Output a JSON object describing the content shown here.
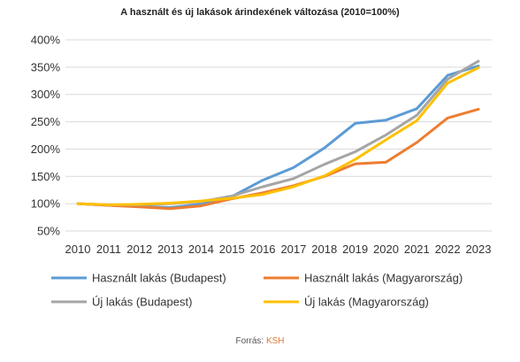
{
  "chart_data": {
    "type": "line",
    "title": "A használt és új lakások árindexének változása (2010=100%)",
    "xlabel": "",
    "ylabel": "",
    "ylim": [
      50,
      400
    ],
    "y_ticks": [
      "50%",
      "100%",
      "150%",
      "200%",
      "250%",
      "300%",
      "350%",
      "400%"
    ],
    "y_tick_values": [
      50,
      100,
      150,
      200,
      250,
      300,
      350,
      400
    ],
    "categories": [
      "2010",
      "2011",
      "2012",
      "2013",
      "2014",
      "2015",
      "2016",
      "2017",
      "2018",
      "2019",
      "2020",
      "2021",
      "2022",
      "2023"
    ],
    "grid": "horizontal",
    "legend_placement": "bottom",
    "series": [
      {
        "name": "Használt lakás (Budapest)",
        "color": "#5B9BD5",
        "values": [
          100,
          97,
          95,
          93,
          99,
          113,
          143,
          166,
          202,
          247,
          253,
          274,
          335,
          352
        ]
      },
      {
        "name": "Használt lakás (Magyarország)",
        "color": "#ED7D31",
        "values": [
          100,
          97,
          94,
          91,
          96,
          109,
          120,
          133,
          150,
          173,
          176,
          212,
          257,
          273
        ]
      },
      {
        "name": "Új lakás (Budapest)",
        "color": "#A5A5A5",
        "values": [
          100,
          98,
          98,
          100,
          104,
          114,
          131,
          146,
          172,
          195,
          226,
          262,
          328,
          361
        ]
      },
      {
        "name": "Új lakás (Magyarország)",
        "color": "#FFC000",
        "values": [
          100,
          98,
          99,
          101,
          105,
          110,
          117,
          131,
          151,
          181,
          217,
          252,
          321,
          349
        ]
      }
    ]
  },
  "footer": {
    "source_label": "Forrás:",
    "source_name": "KSH"
  }
}
